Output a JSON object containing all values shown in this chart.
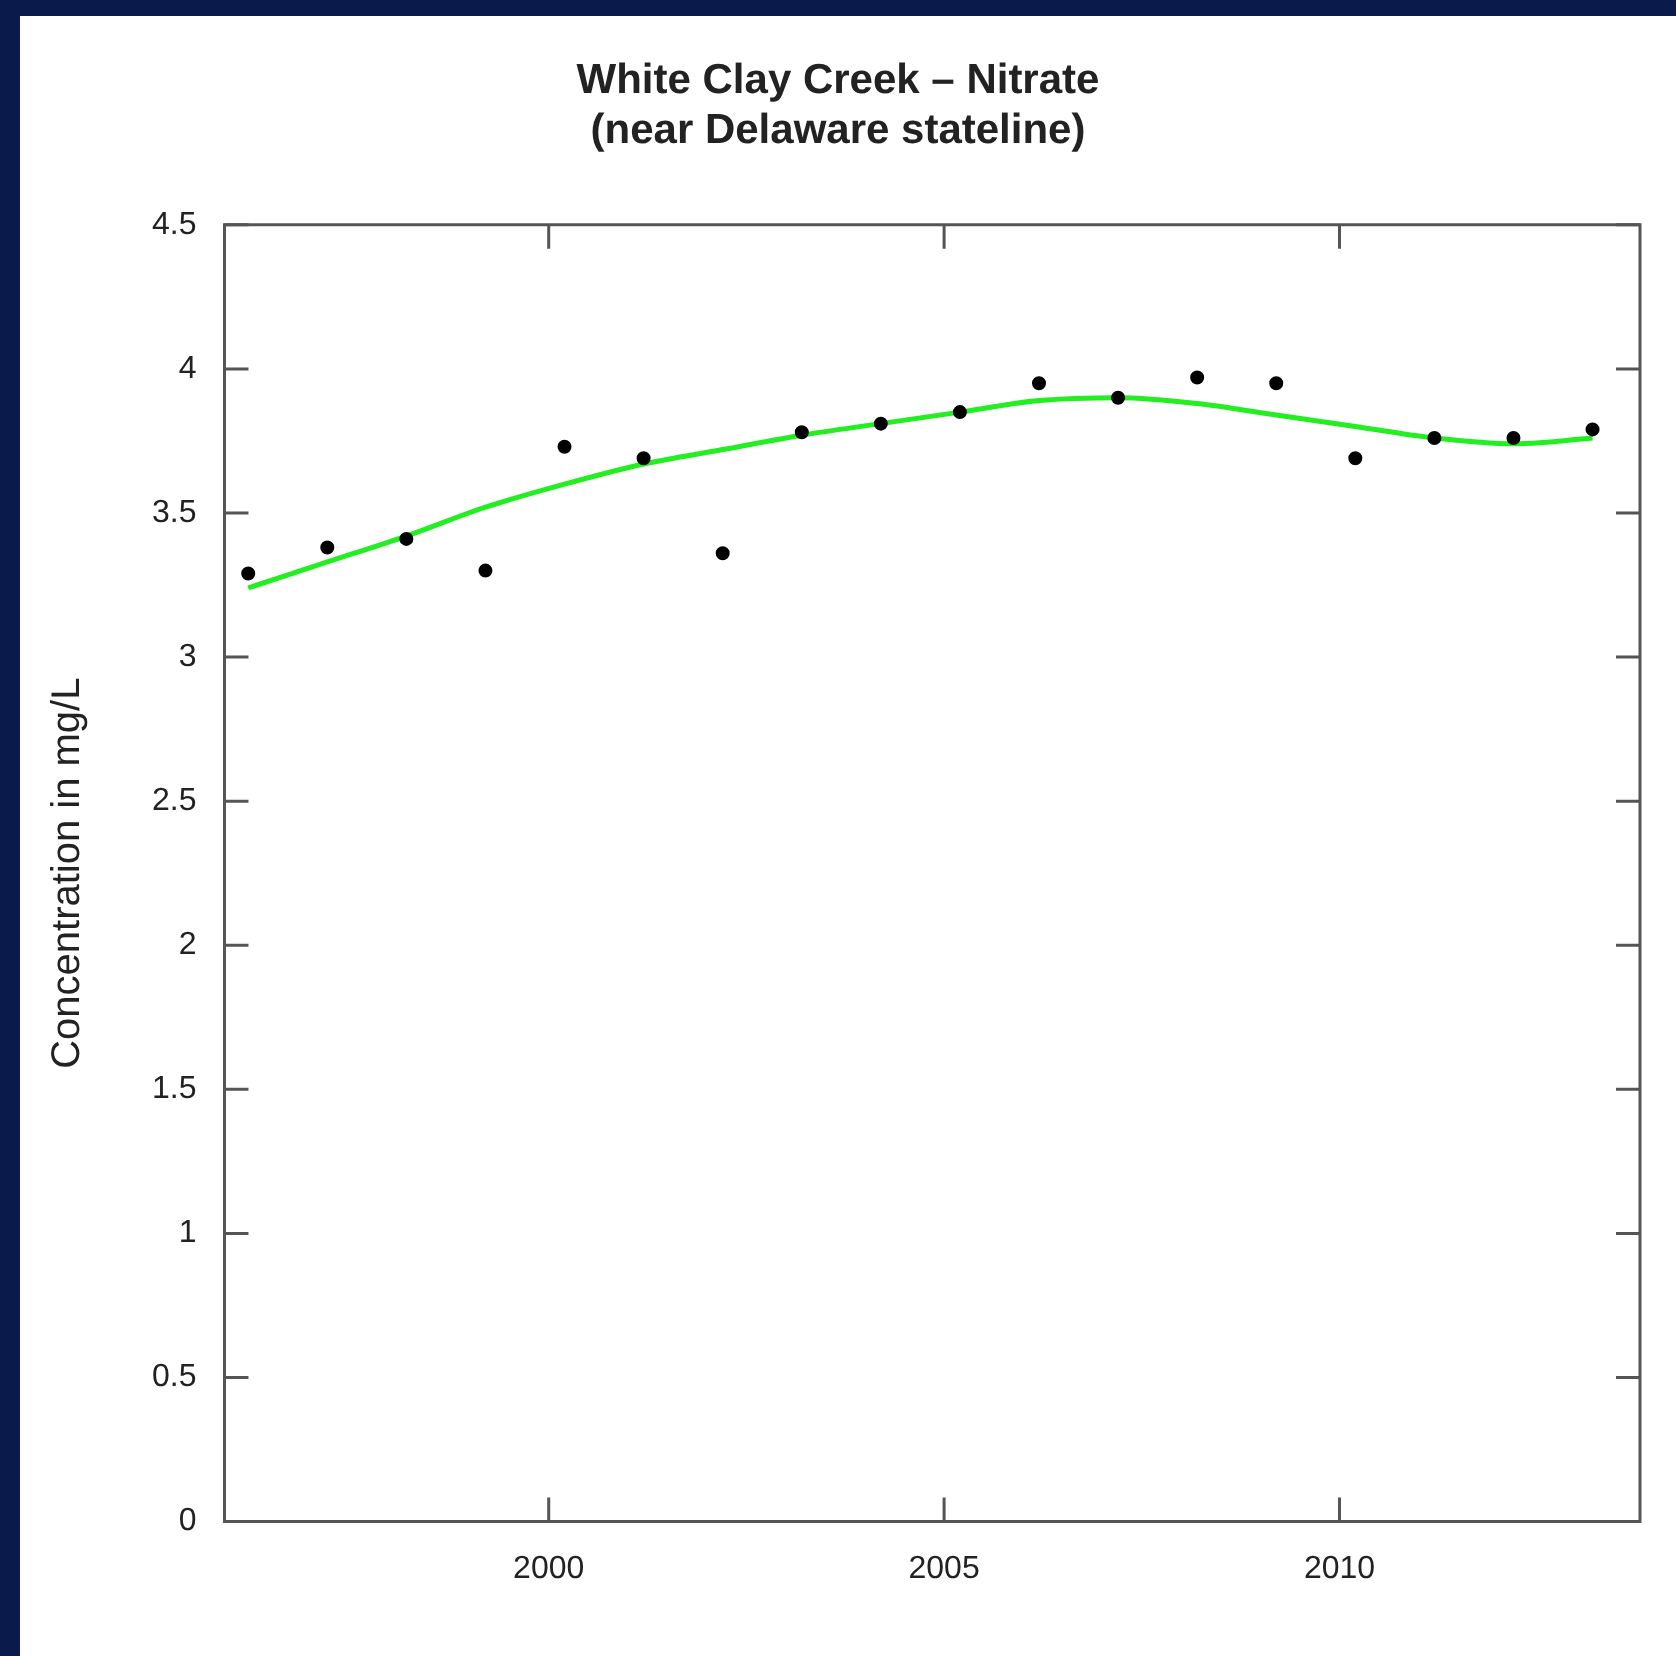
{
  "chart_data": {
    "type": "scatter",
    "title": [
      "White Clay Creek – Nitrate",
      "(near Delaware stateline)"
    ],
    "ylabel": "Concentration in mg/L",
    "xlim": [
      1995.9,
      2013.8
    ],
    "xticks": [
      2000,
      2005,
      2010
    ],
    "ylim": [
      0,
      4.5
    ],
    "yticks": [
      0,
      0.5,
      1,
      1.5,
      2,
      2.5,
      3,
      3.5,
      4,
      4.5
    ],
    "grid": false,
    "legend": false,
    "series": [
      {
        "marker": "circle",
        "color": "#000000",
        "x": [
          1996.2,
          1997.2,
          1998.2,
          1999.2,
          2000.2,
          2001.2,
          2002.2,
          2003.2,
          2004.2,
          2005.2,
          2006.2,
          2007.2,
          2008.2,
          2009.2,
          2010.2,
          2011.2,
          2012.2,
          2013.2
        ],
        "values": [
          3.29,
          3.38,
          3.41,
          3.3,
          3.73,
          3.69,
          3.36,
          3.78,
          3.81,
          3.85,
          3.95,
          3.9,
          3.97,
          3.95,
          3.69,
          3.76,
          3.76,
          3.79
        ]
      },
      {
        "type": "line",
        "marker": "none",
        "color": "#22ee22",
        "x": [
          1996.2,
          1997.2,
          1998.2,
          1999.2,
          2000.2,
          2001.2,
          2002.2,
          2003.2,
          2004.2,
          2005.2,
          2006.2,
          2007.2,
          2008.2,
          2009.2,
          2010.2,
          2011.2,
          2012.2,
          2013.2
        ],
        "values": [
          3.24,
          3.33,
          3.42,
          3.52,
          3.6,
          3.67,
          3.72,
          3.77,
          3.81,
          3.85,
          3.89,
          3.9,
          3.88,
          3.84,
          3.8,
          3.76,
          3.74,
          3.76
        ]
      }
    ]
  }
}
